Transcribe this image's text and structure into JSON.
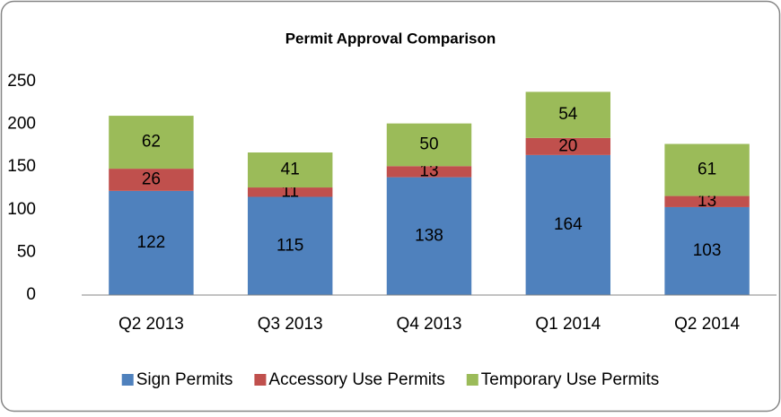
{
  "chart_data": {
    "type": "stacked_bar",
    "title": "Permit Approval Comparison",
    "categories": [
      "Q2 2013",
      "Q3 2013",
      "Q4 2013",
      "Q1 2014",
      "Q2 2014"
    ],
    "series": [
      {
        "name": "Sign Permits",
        "color": "#4f81bd",
        "values": [
          122,
          115,
          138,
          164,
          103
        ]
      },
      {
        "name": "Accessory Use Permits",
        "color": "#c0504d",
        "values": [
          26,
          11,
          13,
          20,
          13
        ]
      },
      {
        "name": "Temporary Use Permits",
        "color": "#9bbb59",
        "values": [
          62,
          41,
          50,
          54,
          61
        ]
      }
    ],
    "ylim": [
      0,
      250
    ],
    "yticks": [
      0,
      50,
      100,
      150,
      200,
      250
    ],
    "grid": false,
    "legend": "bottom"
  }
}
